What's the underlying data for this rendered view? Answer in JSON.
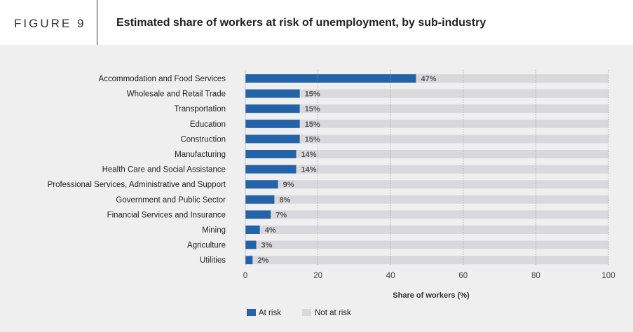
{
  "figure_label": "FIGURE 9",
  "chart_data": {
    "type": "bar",
    "orientation": "horizontal",
    "stacked": true,
    "title": "Estimated share of workers at risk of unemployment, by sub-industry",
    "xlabel": "Share of workers (%)",
    "ylabel": "",
    "xlim": [
      0,
      100
    ],
    "xticks": [
      0,
      20,
      40,
      60,
      80,
      100
    ],
    "grid": "vertical dotted",
    "legend_position": "bottom-left",
    "categories": [
      "Accommodation and Food Services",
      "Wholesale and Retail Trade",
      "Transportation",
      "Education",
      "Construction",
      "Manufacturing",
      "Health Care and Social Assistance",
      "Professional Services, Administrative and Support",
      "Government and Public Sector",
      "Financial Services and Insurance",
      "Mining",
      "Agriculture",
      "Utilities"
    ],
    "series": [
      {
        "name": "At risk",
        "color": "#2463a8",
        "values": [
          47,
          15,
          15,
          15,
          15,
          14,
          14,
          9,
          8,
          7,
          4,
          3,
          2
        ]
      },
      {
        "name": "Not at risk",
        "color": "#d9d9db",
        "values": [
          53,
          85,
          85,
          85,
          85,
          86,
          86,
          91,
          92,
          93,
          96,
          97,
          98
        ]
      }
    ],
    "data_labels": [
      "47%",
      "15%",
      "15%",
      "15%",
      "15%",
      "14%",
      "14%",
      "9%",
      "8%",
      "7%",
      "4%",
      "3%",
      "2%"
    ]
  }
}
